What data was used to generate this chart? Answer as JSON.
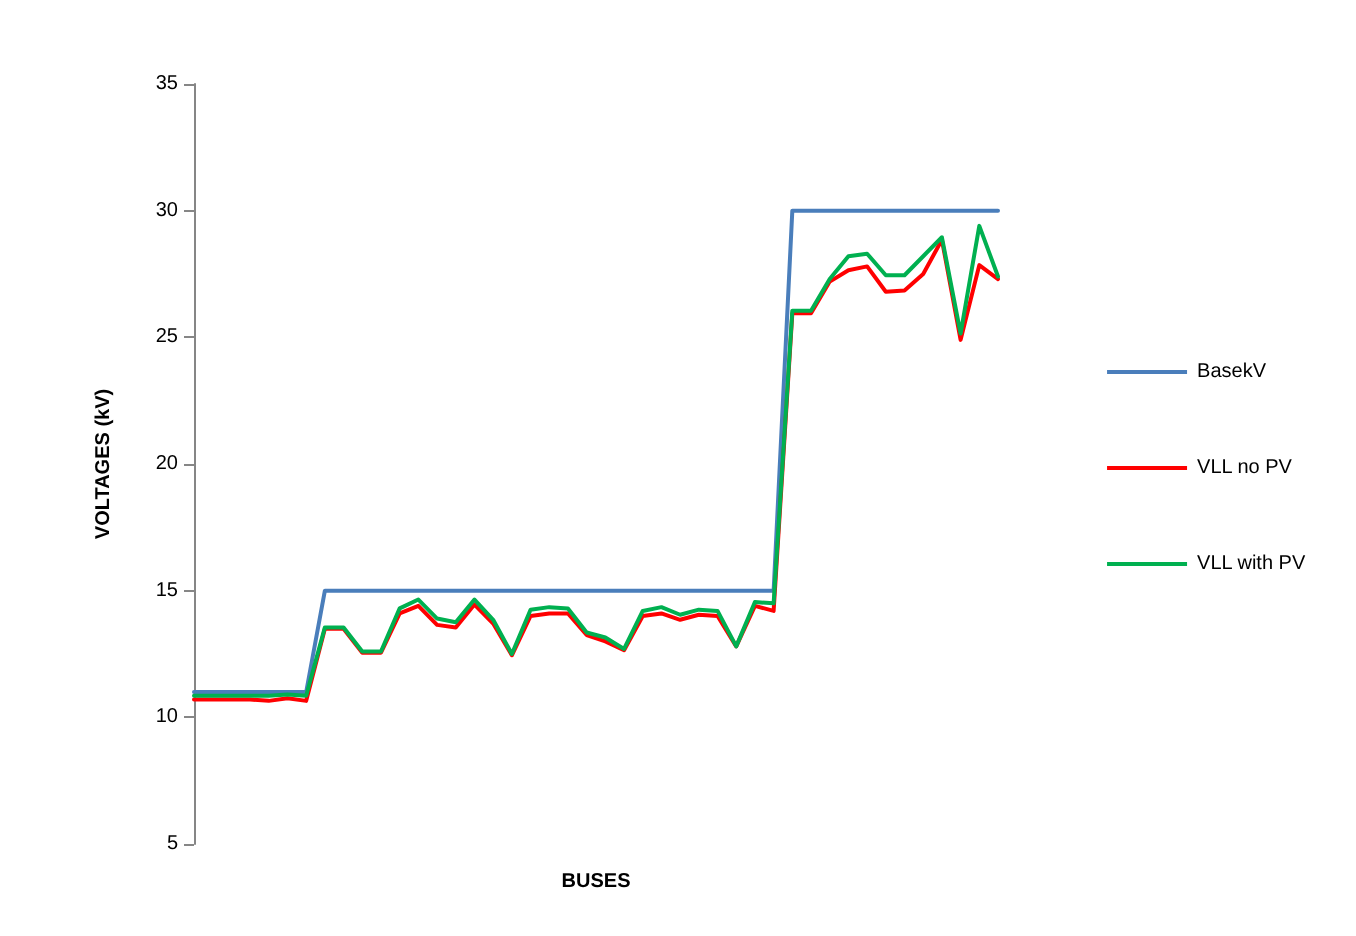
{
  "chart_data": {
    "type": "line",
    "xlabel": "BUSES",
    "ylabel": "VOLTAGES (kV)",
    "categories": [
      null,
      null,
      null,
      null,
      null,
      null,
      null,
      null,
      null,
      null,
      null,
      null,
      null,
      null,
      null,
      null,
      null,
      null,
      null,
      null,
      null,
      null,
      null,
      null,
      null,
      null,
      null,
      null,
      null,
      null,
      null,
      null,
      null,
      null,
      null,
      null,
      null,
      null,
      null,
      null,
      null,
      null,
      null,
      null
    ],
    "series": [
      {
        "name": "BasekV",
        "color": "#4a7ebb",
        "values": [
          11,
          11,
          11,
          11,
          11,
          11,
          11,
          15,
          15,
          15,
          15,
          15,
          15,
          15,
          15,
          15,
          15,
          15,
          15,
          15,
          15,
          15,
          15,
          15,
          15,
          15,
          15,
          15,
          15,
          15,
          15,
          15,
          30,
          30,
          30,
          30,
          30,
          30,
          30,
          30,
          30,
          30,
          30,
          30
        ]
      },
      {
        "name": "VLL no PV",
        "color": "#ff0000",
        "values": [
          10.7,
          10.7,
          10.7,
          10.7,
          10.65,
          10.75,
          10.65,
          13.5,
          13.5,
          12.55,
          12.55,
          14.1,
          14.4,
          13.65,
          13.55,
          14.45,
          13.7,
          12.45,
          14.0,
          14.1,
          14.1,
          13.25,
          13.0,
          12.65,
          14.0,
          14.1,
          13.85,
          14.05,
          14.0,
          12.8,
          14.4,
          14.2,
          25.95,
          25.95,
          27.2,
          27.65,
          27.8,
          26.8,
          26.85,
          27.5,
          28.85,
          24.9,
          27.85,
          27.3
        ]
      },
      {
        "name": "VLL with PV",
        "color": "#00b050",
        "values": [
          10.85,
          10.85,
          10.85,
          10.85,
          10.85,
          10.9,
          10.85,
          13.55,
          13.55,
          12.6,
          12.6,
          14.3,
          14.65,
          13.9,
          13.75,
          14.65,
          13.85,
          12.5,
          14.25,
          14.35,
          14.3,
          13.35,
          13.15,
          12.7,
          14.2,
          14.35,
          14.05,
          14.25,
          14.2,
          12.8,
          14.55,
          14.5,
          26.05,
          26.05,
          27.3,
          28.2,
          28.3,
          27.45,
          27.45,
          28.2,
          28.95,
          25.15,
          29.4,
          27.4
        ]
      }
    ],
    "ylim": [
      5,
      35
    ],
    "yticks": [
      5,
      10,
      15,
      20,
      25,
      30,
      35
    ],
    "grid": false,
    "legend": "right",
    "marker": "none",
    "line_style": "solid",
    "tick_labels": "y"
  }
}
